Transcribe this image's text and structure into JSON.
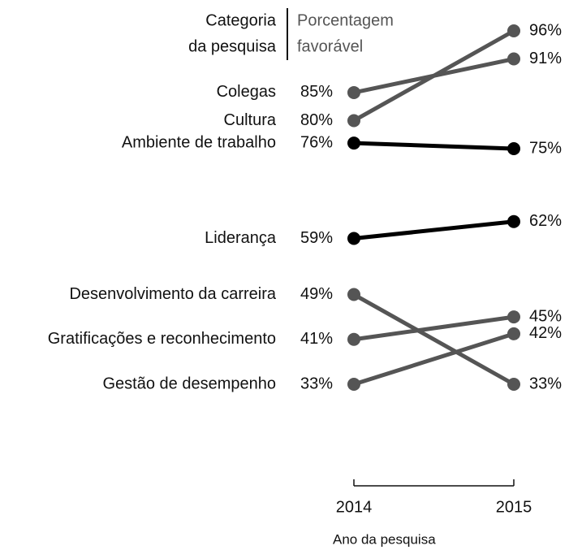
{
  "chart_data": {
    "type": "slope",
    "header_left": [
      "Categoria",
      "da pesquisa"
    ],
    "header_right": [
      "Porcentagem",
      "favorável"
    ],
    "x": [
      2014,
      2015
    ],
    "x_label": "Ano da pesquisa",
    "series": [
      {
        "name": "Colegas",
        "color": "#555555",
        "values": [
          85,
          91
        ],
        "value_labels": [
          "85%",
          "91%"
        ]
      },
      {
        "name": "Cultura",
        "color": "#555555",
        "values": [
          80,
          96
        ],
        "value_labels": [
          "80%",
          "96%"
        ]
      },
      {
        "name": "Ambiente de trabalho",
        "color": "#000000",
        "values": [
          76,
          75
        ],
        "value_labels": [
          "76%",
          "75%"
        ]
      },
      {
        "name": "Liderança",
        "color": "#000000",
        "values": [
          59,
          62
        ],
        "value_labels": [
          "59%",
          "62%"
        ]
      },
      {
        "name": "Desenvolvimento da carreira",
        "color": "#555555",
        "values": [
          49,
          33
        ],
        "value_labels": [
          "49%",
          "33%"
        ]
      },
      {
        "name": "Gratificações e reconhecimento",
        "color": "#555555",
        "values": [
          41,
          45
        ],
        "value_labels": [
          "41%",
          "45%"
        ]
      },
      {
        "name": "Gestão de desempenho",
        "color": "#555555",
        "values": [
          33,
          42
        ],
        "value_labels": [
          "33%",
          "42%"
        ]
      }
    ]
  }
}
